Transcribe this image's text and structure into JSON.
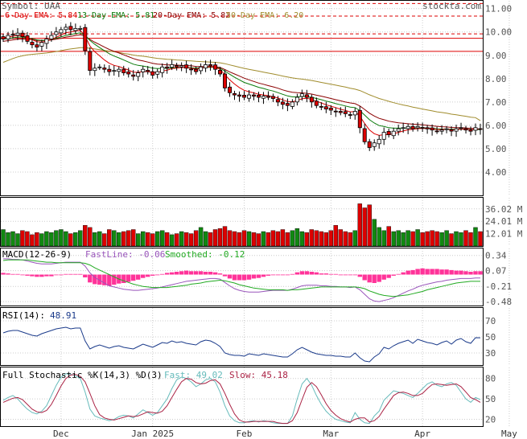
{
  "chart_data": {
    "type": "stock-candlestick",
    "symbol_label": "Symbol: UAA",
    "watermark": "stockta.com",
    "colors": {
      "up": "#ffffff",
      "down": "#dd0000",
      "vol_up": "#118811",
      "vol_down": "#dd0000",
      "ema6": "#dd0000",
      "ema13": "#0a7a0a",
      "ema20": "#8b0000",
      "ema50": "#a08c2c",
      "resistance": "#dd0000",
      "macd_hist": "#ff3399",
      "macd_fast": "#9955bb",
      "macd_smooth": "#22aa22",
      "rsi": "#1a3a8a",
      "stoch_fast": "#66bbbb",
      "stoch_slow": "#aa2244"
    },
    "price_panel": {
      "y_ticks": [
        "11.00",
        "10.00",
        "9.00",
        "8.00",
        "7.00",
        "6.00",
        "5.00",
        "4.00"
      ],
      "ylim": [
        3.0,
        11.3
      ],
      "ema_legend": [
        {
          "label": "6-Day EMA: 5.84",
          "color": "#dd0000"
        },
        {
          "label": "13-Day EMA: 5.81",
          "color": "#0a7a0a"
        },
        {
          "label": "20-Day EMA: 5.82",
          "color": "#8b0000"
        },
        {
          "label": "50-Day EMA: 6.20",
          "color": "#a08c2c"
        }
      ],
      "resistance_lines": [
        {
          "level": 11.22,
          "style": "dashed"
        },
        {
          "level": 10.68,
          "style": "dashed"
        },
        {
          "level": 9.92,
          "style": "dashed"
        },
        {
          "level": 9.73,
          "style": "solid"
        },
        {
          "level": 9.17,
          "style": "solid"
        }
      ],
      "closes": [
        9.7,
        9.85,
        9.9,
        9.95,
        9.8,
        9.6,
        9.45,
        9.35,
        9.55,
        9.7,
        9.85,
        10.0,
        10.1,
        10.2,
        10.1,
        10.15,
        10.15,
        9.2,
        8.35,
        8.45,
        8.5,
        8.4,
        8.3,
        8.35,
        8.4,
        8.25,
        8.2,
        8.1,
        8.25,
        8.4,
        8.3,
        8.15,
        8.3,
        8.5,
        8.45,
        8.6,
        8.5,
        8.55,
        8.45,
        8.4,
        8.3,
        8.5,
        8.6,
        8.55,
        8.4,
        8.2,
        7.6,
        7.4,
        7.3,
        7.25,
        7.2,
        7.3,
        7.25,
        7.2,
        7.25,
        7.2,
        7.15,
        7.0,
        6.9,
        6.85,
        7.0,
        7.2,
        7.35,
        7.2,
        7.0,
        6.85,
        6.8,
        6.7,
        6.65,
        6.6,
        6.55,
        6.5,
        6.45,
        6.6,
        5.9,
        5.3,
        5.05,
        5.25,
        5.4,
        5.7,
        5.6,
        5.75,
        5.85,
        5.9,
        5.95,
        5.85,
        5.95,
        5.9,
        5.85,
        5.8,
        5.75,
        5.8,
        5.85,
        5.75,
        5.85,
        5.9,
        5.8,
        5.75,
        5.9,
        5.84
      ],
      "ema6": [
        9.75,
        9.78,
        9.82,
        9.85,
        9.83,
        9.76,
        9.67,
        9.58,
        9.57,
        9.61,
        9.68,
        9.77,
        9.87,
        9.97,
        10.0,
        10.04,
        10.07,
        9.82,
        9.4,
        9.15,
        8.98,
        8.8,
        8.66,
        8.57,
        8.52,
        8.44,
        8.37,
        8.28,
        8.27,
        8.3,
        8.3,
        8.26,
        8.27,
        8.33,
        8.36,
        8.43,
        8.45,
        8.48,
        8.47,
        8.45,
        8.41,
        8.44,
        8.49,
        8.51,
        8.48,
        8.4,
        8.17,
        7.95,
        7.77,
        7.62,
        7.5,
        7.44,
        7.39,
        7.33,
        7.3,
        7.27,
        7.23,
        7.17,
        7.09,
        7.02,
        7.01,
        7.06,
        7.14,
        7.16,
        7.11,
        7.03,
        6.96,
        6.88,
        6.82,
        6.76,
        6.69,
        6.64,
        6.58,
        6.59,
        6.39,
        6.08,
        5.8,
        5.64,
        5.57,
        5.6,
        5.6,
        5.64,
        5.7,
        5.76,
        5.81,
        5.83,
        5.86,
        5.87,
        5.87,
        5.85,
        5.82,
        5.82,
        5.83,
        5.81,
        5.82,
        5.84,
        5.83,
        5.81,
        5.84,
        5.84
      ],
      "ema13": [
        9.7,
        9.72,
        9.75,
        9.78,
        9.78,
        9.75,
        9.71,
        9.66,
        9.64,
        9.65,
        9.68,
        9.73,
        9.79,
        9.85,
        9.89,
        9.93,
        9.96,
        9.85,
        9.64,
        9.47,
        9.33,
        9.2,
        9.07,
        8.97,
        8.89,
        8.8,
        8.71,
        8.62,
        8.57,
        8.54,
        8.5,
        8.45,
        8.43,
        8.44,
        8.44,
        8.46,
        8.47,
        8.48,
        8.48,
        8.47,
        8.45,
        8.46,
        8.48,
        8.49,
        8.48,
        8.44,
        8.32,
        8.19,
        8.06,
        7.95,
        7.84,
        7.77,
        7.7,
        7.63,
        7.58,
        7.52,
        7.47,
        7.4,
        7.33,
        7.26,
        7.22,
        7.22,
        7.24,
        7.23,
        7.2,
        7.15,
        7.1,
        7.04,
        6.99,
        6.93,
        6.88,
        6.83,
        6.78,
        6.76,
        6.63,
        6.44,
        6.24,
        6.1,
        5.99,
        5.95,
        5.9,
        5.88,
        5.88,
        5.88,
        5.89,
        5.88,
        5.89,
        5.89,
        5.88,
        5.87,
        5.85,
        5.84,
        5.84,
        5.83,
        5.83,
        5.84,
        5.83,
        5.82,
        5.83,
        5.81
      ],
      "ema20": [
        9.6,
        9.63,
        9.66,
        9.69,
        9.7,
        9.69,
        9.67,
        9.64,
        9.63,
        9.64,
        9.66,
        9.69,
        9.73,
        9.78,
        9.81,
        9.85,
        9.88,
        9.82,
        9.68,
        9.56,
        9.46,
        9.35,
        9.25,
        9.17,
        9.1,
        9.02,
        8.94,
        8.86,
        8.8,
        8.76,
        8.71,
        8.66,
        8.62,
        8.61,
        8.59,
        8.59,
        8.58,
        8.57,
        8.56,
        8.55,
        8.52,
        8.52,
        8.52,
        8.52,
        8.51,
        8.48,
        8.39,
        8.29,
        8.2,
        8.11,
        8.02,
        7.95,
        7.88,
        7.81,
        7.76,
        7.7,
        7.65,
        7.59,
        7.52,
        7.46,
        7.42,
        7.4,
        7.39,
        7.37,
        7.34,
        7.29,
        7.25,
        7.2,
        7.15,
        7.1,
        7.05,
        7.0,
        6.96,
        6.93,
        6.83,
        6.68,
        6.52,
        6.4,
        6.3,
        6.24,
        6.18,
        6.14,
        6.11,
        6.09,
        6.07,
        6.05,
        6.04,
        6.02,
        6.0,
        5.98,
        5.96,
        5.94,
        5.93,
        5.91,
        5.9,
        5.9,
        5.89,
        5.87,
        5.87,
        5.82
      ],
      "ema50": [
        8.7,
        8.78,
        8.86,
        8.93,
        8.98,
        9.02,
        9.04,
        9.06,
        9.08,
        9.1,
        9.13,
        9.16,
        9.2,
        9.24,
        9.27,
        9.3,
        9.33,
        9.33,
        9.3,
        9.27,
        9.24,
        9.21,
        9.18,
        9.15,
        9.12,
        9.08,
        9.05,
        9.01,
        8.98,
        8.96,
        8.93,
        8.9,
        8.87,
        8.85,
        8.83,
        8.82,
        8.8,
        8.79,
        8.77,
        8.76,
        8.74,
        8.73,
        8.72,
        8.71,
        8.7,
        8.68,
        8.64,
        8.59,
        8.54,
        8.49,
        8.44,
        8.4,
        8.36,
        8.32,
        8.28,
        8.24,
        8.2,
        8.16,
        8.11,
        8.07,
        8.03,
        8.0,
        7.98,
        7.95,
        7.92,
        7.88,
        7.84,
        7.8,
        7.76,
        7.72,
        7.68,
        7.64,
        7.59,
        7.55,
        7.49,
        7.4,
        7.31,
        7.23,
        7.15,
        7.09,
        7.03,
        6.97,
        6.92,
        6.87,
        6.83,
        6.78,
        6.74,
        6.7,
        6.66,
        6.62,
        6.58,
        6.55,
        6.52,
        6.48,
        6.45,
        6.42,
        6.39,
        6.35,
        6.33,
        6.2
      ]
    },
    "volume_panel": {
      "y_ticks": [
        "36.02 M",
        "24.01 M",
        "12.01 M"
      ],
      "ylim": [
        0,
        46
      ],
      "values": [
        16,
        13,
        14,
        12,
        15,
        14,
        11,
        13,
        12,
        14,
        13,
        15,
        16,
        14,
        12,
        13,
        15,
        20,
        18,
        13,
        14,
        12,
        16,
        15,
        13,
        14,
        15,
        16,
        12,
        14,
        13,
        12,
        14,
        15,
        13,
        11,
        12,
        14,
        13,
        12,
        15,
        18,
        14,
        13,
        16,
        17,
        19,
        15,
        14,
        13,
        15,
        14,
        13,
        12,
        14,
        13,
        15,
        14,
        16,
        13,
        15,
        17,
        14,
        13,
        16,
        15,
        14,
        13,
        15,
        20,
        16,
        14,
        13,
        15,
        41,
        37,
        40,
        26,
        18,
        15,
        19,
        14,
        15,
        13,
        15,
        14,
        16,
        13,
        14,
        15,
        14,
        13,
        15,
        12,
        14,
        13,
        15,
        13,
        18,
        14
      ]
    },
    "macd_panel": {
      "label": "MACD(12-26-9)",
      "fast_label": "FastLine: -0.06",
      "smooth_label": "Smoothed: -0.12",
      "y_ticks": [
        "0.34",
        "0.07",
        "-0.21",
        "-0.48"
      ],
      "ylim": [
        -0.55,
        0.45
      ],
      "fast": [
        0.28,
        0.28,
        0.27,
        0.27,
        0.26,
        0.24,
        0.22,
        0.2,
        0.19,
        0.19,
        0.19,
        0.2,
        0.21,
        0.22,
        0.22,
        0.22,
        0.22,
        0.15,
        0.03,
        -0.05,
        -0.1,
        -0.15,
        -0.2,
        -0.22,
        -0.24,
        -0.26,
        -0.27,
        -0.28,
        -0.28,
        -0.27,
        -0.26,
        -0.25,
        -0.24,
        -0.22,
        -0.2,
        -0.18,
        -0.16,
        -0.14,
        -0.12,
        -0.11,
        -0.1,
        -0.09,
        -0.08,
        -0.07,
        -0.07,
        -0.08,
        -0.14,
        -0.2,
        -0.25,
        -0.28,
        -0.3,
        -0.31,
        -0.31,
        -0.31,
        -0.3,
        -0.29,
        -0.28,
        -0.28,
        -0.28,
        -0.28,
        -0.26,
        -0.23,
        -0.2,
        -0.19,
        -0.19,
        -0.19,
        -0.2,
        -0.2,
        -0.21,
        -0.21,
        -0.22,
        -0.22,
        -0.23,
        -0.22,
        -0.27,
        -0.35,
        -0.43,
        -0.47,
        -0.48,
        -0.46,
        -0.44,
        -0.41,
        -0.37,
        -0.33,
        -0.29,
        -0.26,
        -0.22,
        -0.19,
        -0.17,
        -0.15,
        -0.13,
        -0.12,
        -0.1,
        -0.09,
        -0.08,
        -0.07,
        -0.07,
        -0.07,
        -0.06,
        -0.06
      ],
      "smooth": [
        0.25,
        0.26,
        0.26,
        0.26,
        0.26,
        0.26,
        0.25,
        0.24,
        0.23,
        0.22,
        0.22,
        0.21,
        0.21,
        0.21,
        0.21,
        0.21,
        0.21,
        0.2,
        0.17,
        0.12,
        0.08,
        0.04,
        0.0,
        -0.04,
        -0.08,
        -0.11,
        -0.14,
        -0.17,
        -0.19,
        -0.21,
        -0.22,
        -0.23,
        -0.23,
        -0.23,
        -0.23,
        -0.22,
        -0.21,
        -0.2,
        -0.19,
        -0.17,
        -0.16,
        -0.15,
        -0.13,
        -0.12,
        -0.11,
        -0.1,
        -0.11,
        -0.13,
        -0.15,
        -0.18,
        -0.2,
        -0.22,
        -0.24,
        -0.25,
        -0.26,
        -0.27,
        -0.27,
        -0.27,
        -0.27,
        -0.28,
        -0.27,
        -0.27,
        -0.26,
        -0.25,
        -0.24,
        -0.23,
        -0.22,
        -0.22,
        -0.22,
        -0.22,
        -0.22,
        -0.22,
        -0.22,
        -0.22,
        -0.23,
        -0.25,
        -0.29,
        -0.32,
        -0.35,
        -0.37,
        -0.38,
        -0.39,
        -0.38,
        -0.37,
        -0.36,
        -0.34,
        -0.32,
        -0.3,
        -0.27,
        -0.25,
        -0.23,
        -0.21,
        -0.19,
        -0.17,
        -0.15,
        -0.14,
        -0.13,
        -0.12,
        -0.12,
        -0.12
      ]
    },
    "rsi_panel": {
      "label": "RSI(14):",
      "value_label": "48.91",
      "y_ticks": [
        "70",
        "50",
        "30"
      ],
      "ylim": [
        15,
        85
      ],
      "values": [
        55,
        57,
        58,
        58,
        56,
        54,
        52,
        51,
        54,
        56,
        58,
        60,
        61,
        62,
        60,
        61,
        61,
        45,
        35,
        38,
        40,
        38,
        36,
        38,
        39,
        37,
        36,
        35,
        38,
        41,
        39,
        37,
        40,
        43,
        42,
        45,
        43,
        44,
        42,
        41,
        40,
        44,
        46,
        45,
        42,
        38,
        30,
        28,
        27,
        27,
        26,
        29,
        28,
        27,
        29,
        28,
        27,
        26,
        25,
        25,
        29,
        34,
        37,
        34,
        31,
        29,
        28,
        27,
        27,
        26,
        26,
        25,
        25,
        30,
        24,
        20,
        19,
        25,
        29,
        37,
        35,
        39,
        42,
        44,
        46,
        42,
        47,
        45,
        43,
        42,
        40,
        43,
        45,
        41,
        46,
        48,
        44,
        42,
        49,
        48.91
      ]
    },
    "stoch_panel": {
      "label": "Full Stochastic %K(14,3) %D(3)",
      "fast_label": "Fast: 49.02",
      "slow_label": "Slow: 45.18",
      "y_ticks": [
        "80",
        "50",
        "20"
      ],
      "ylim": [
        10,
        95
      ],
      "fast": [
        48,
        52,
        55,
        50,
        42,
        35,
        30,
        28,
        32,
        40,
        55,
        70,
        82,
        87,
        86,
        84,
        80,
        60,
        35,
        25,
        22,
        20,
        18,
        20,
        24,
        26,
        25,
        22,
        28,
        34,
        30,
        26,
        30,
        40,
        50,
        65,
        78,
        82,
        80,
        75,
        68,
        72,
        78,
        80,
        75,
        60,
        40,
        25,
        18,
        15,
        15,
        17,
        18,
        16,
        18,
        17,
        15,
        14,
        14,
        14,
        25,
        50,
        72,
        80,
        70,
        55,
        42,
        32,
        25,
        20,
        18,
        16,
        15,
        30,
        20,
        15,
        14,
        25,
        32,
        48,
        55,
        62,
        60,
        58,
        55,
        52,
        58,
        65,
        72,
        75,
        70,
        68,
        72,
        74,
        70,
        60,
        50,
        45,
        52,
        49
      ],
      "slow": [
        45,
        48,
        51,
        52,
        49,
        42,
        35,
        31,
        30,
        33,
        42,
        55,
        69,
        80,
        85,
        86,
        83,
        75,
        58,
        40,
        27,
        22,
        20,
        19,
        21,
        23,
        25,
        24,
        25,
        28,
        31,
        30,
        29,
        32,
        40,
        52,
        64,
        75,
        80,
        79,
        74,
        72,
        73,
        77,
        78,
        72,
        58,
        42,
        28,
        19,
        16,
        16,
        17,
        17,
        17,
        17,
        17,
        15,
        14,
        14,
        18,
        30,
        49,
        67,
        74,
        68,
        56,
        43,
        33,
        26,
        21,
        18,
        16,
        20,
        22,
        22,
        16,
        18,
        24,
        35,
        45,
        55,
        59,
        60,
        58,
        55,
        55,
        58,
        65,
        71,
        72,
        71,
        70,
        71,
        72,
        68,
        60,
        52,
        49,
        45
      ]
    },
    "x_tick_labels": [
      {
        "label": "Dec",
        "index": 12
      },
      {
        "label": "Jan 2025",
        "index": 31
      },
      {
        "label": "Feb",
        "index": 50
      },
      {
        "label": "Mar",
        "index": 68
      },
      {
        "label": "Apr",
        "index": 87
      },
      {
        "label": "May",
        "index": 105
      }
    ]
  }
}
